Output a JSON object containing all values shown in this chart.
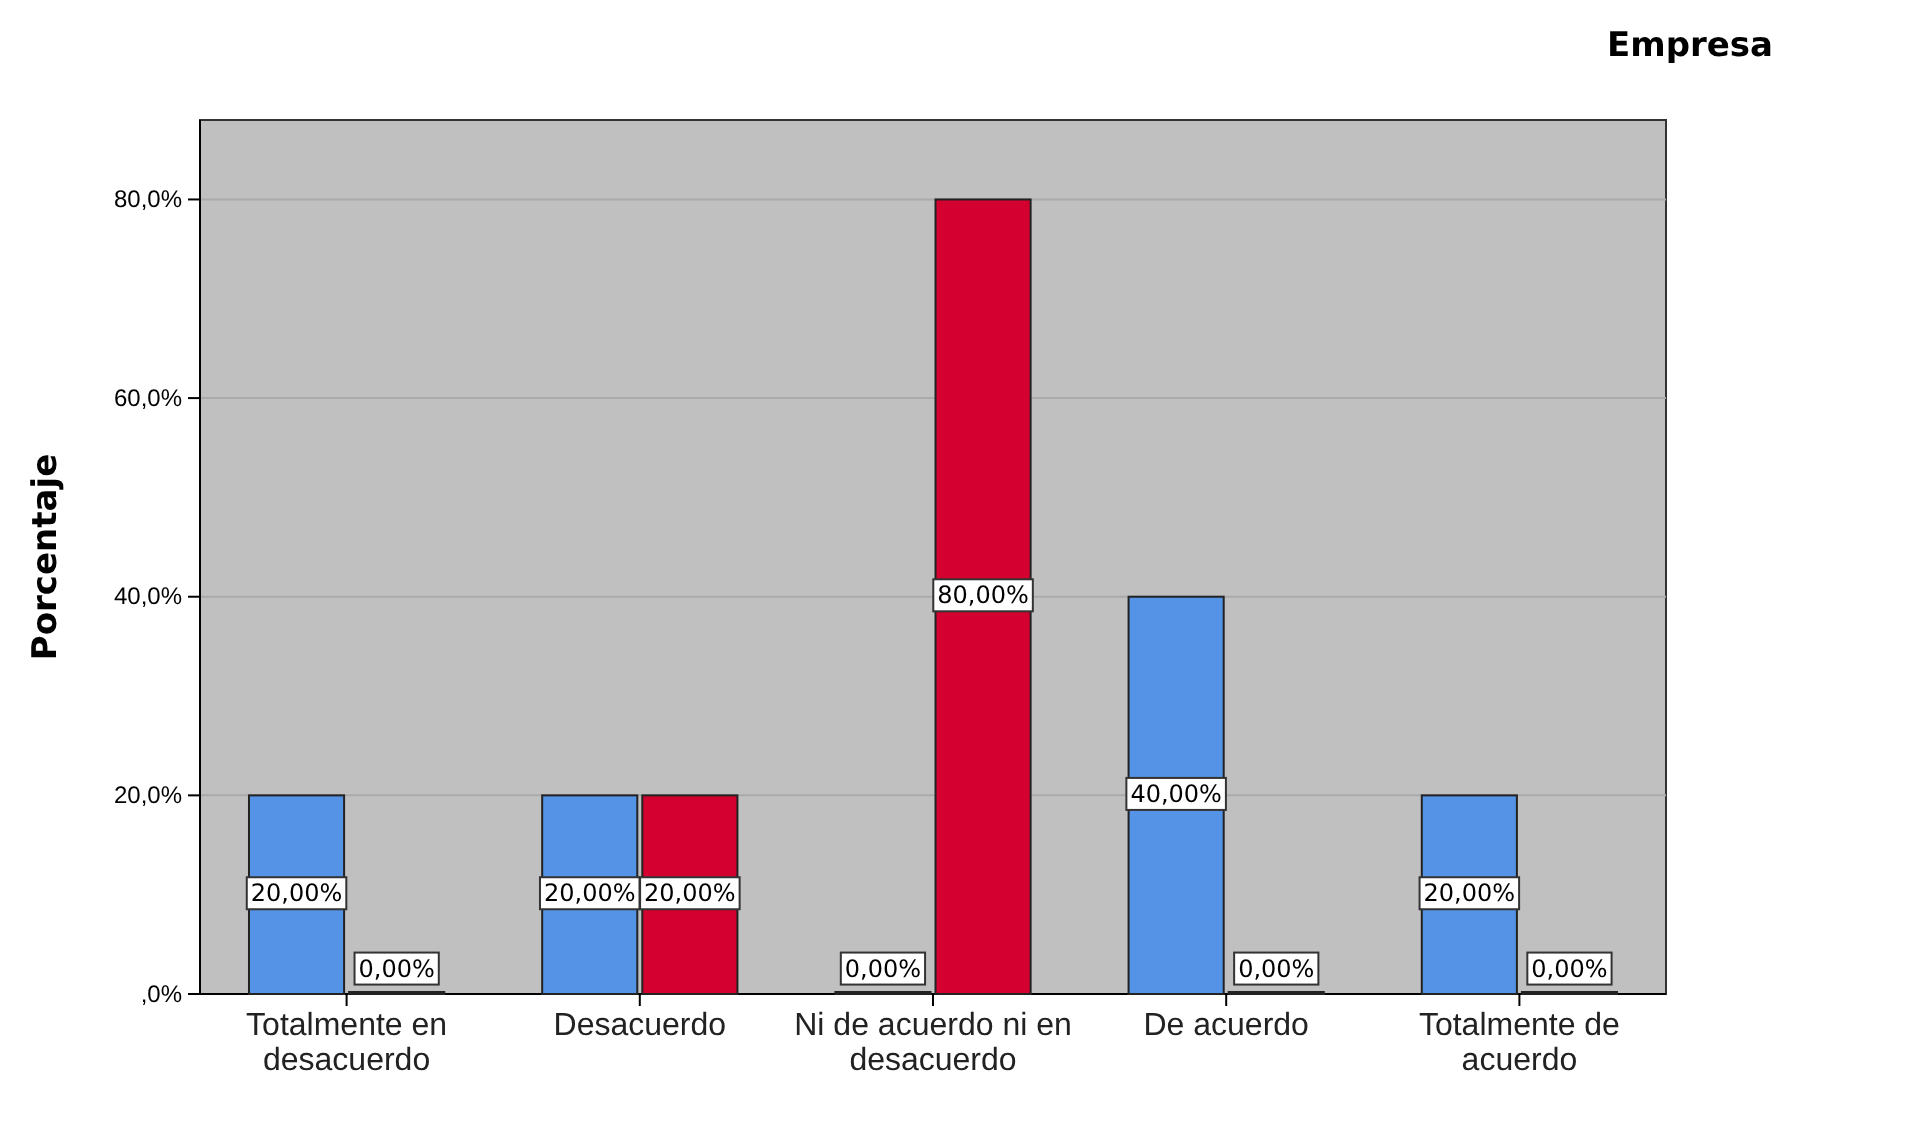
{
  "chart_data": {
    "type": "bar",
    "ylabel": "Porcentaje",
    "legend_title": "Empresa",
    "grid": "y",
    "categories": [
      "Totalmente en desacuerdo",
      "Desacuerdo",
      "Ni de acuerdo ni en desacuerdo",
      "De acuerdo",
      "Totalmente de acuerdo"
    ],
    "series": [
      {
        "color": "#5593e6",
        "values": [
          20,
          20,
          0,
          40,
          20
        ],
        "value_labels": [
          "20,00%",
          "20,00%",
          "0,00%",
          "40,00%",
          "20,00%"
        ]
      },
      {
        "color": "#d4002f",
        "values": [
          0,
          20,
          80,
          0,
          0
        ],
        "value_labels": [
          "0,00%",
          "20,00%",
          "80,00%",
          "0,00%",
          "0,00%"
        ]
      }
    ],
    "ylim": [
      0,
      88
    ],
    "yticks": [
      {
        "value": 0,
        "label": ",0%"
      },
      {
        "value": 20,
        "label": "20,0%"
      },
      {
        "value": 40,
        "label": "40,0%"
      },
      {
        "value": 60,
        "label": "60,0%"
      },
      {
        "value": 80,
        "label": "80,0%"
      }
    ]
  }
}
